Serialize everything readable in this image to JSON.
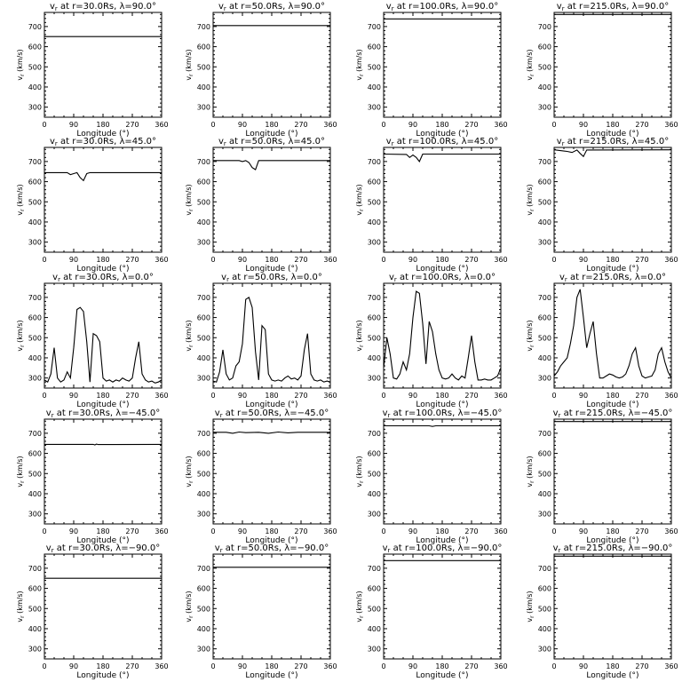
{
  "chart_data": {
    "type": "line",
    "layout": "5 rows x 4 columns",
    "common": {
      "xlabel": "Longitude (°)",
      "ylabel_prefix": "v",
      "ylabel_sub": "r",
      "ylabel_suffix": "(km/s)",
      "xlim": [
        0,
        360
      ],
      "xticks": [
        0,
        90,
        180,
        270,
        360
      ],
      "ylim": [
        250,
        770
      ],
      "yticks": [
        300,
        400,
        500,
        600,
        700
      ],
      "title_prefix": "v",
      "title_sub": "r"
    },
    "panels": [
      {
        "title": " at r=30.0Rs, λ=90.0°",
        "x": [
          0,
          360
        ],
        "y": [
          650,
          650
        ]
      },
      {
        "title": " at r=50.0Rs, λ=90.0°",
        "x": [
          0,
          360
        ],
        "y": [
          705,
          705
        ]
      },
      {
        "title": " at r=100.0Rs, λ=90.0°",
        "x": [
          0,
          360
        ],
        "y": [
          738,
          738
        ]
      },
      {
        "title": " at r=215.0Rs, λ=90.0°",
        "x": [
          0,
          360
        ],
        "y": [
          760,
          760
        ]
      },
      {
        "title": " at r=30.0Rs, λ=45.0°",
        "x": [
          0,
          70,
          80,
          90,
          100,
          110,
          120,
          130,
          140,
          360
        ],
        "y": [
          645,
          645,
          635,
          640,
          645,
          620,
          605,
          640,
          645,
          645
        ]
      },
      {
        "title": " at r=50.0Rs, λ=45.0°",
        "x": [
          0,
          80,
          90,
          100,
          110,
          120,
          130,
          140,
          360
        ],
        "y": [
          705,
          705,
          700,
          705,
          695,
          670,
          660,
          705,
          705
        ]
      },
      {
        "title": " at r=100.0Rs, λ=45.0°",
        "x": [
          0,
          70,
          80,
          90,
          100,
          110,
          120,
          360
        ],
        "y": [
          737,
          735,
          720,
          732,
          720,
          700,
          737,
          737
        ]
      },
      {
        "title": " at r=215.0Rs, λ=45.0°",
        "x": [
          0,
          40,
          55,
          70,
          80,
          90,
          100,
          360
        ],
        "y": [
          758,
          750,
          745,
          757,
          740,
          725,
          757,
          758
        ]
      },
      {
        "title": " at r=30.0Rs, λ=0.0°",
        "x": [
          0,
          10,
          20,
          30,
          40,
          50,
          60,
          70,
          80,
          90,
          100,
          110,
          120,
          130,
          140,
          150,
          160,
          170,
          180,
          190,
          200,
          210,
          220,
          230,
          240,
          250,
          260,
          270,
          280,
          290,
          300,
          310,
          320,
          330,
          340,
          350,
          360
        ],
        "y": [
          290,
          280,
          320,
          450,
          300,
          280,
          290,
          330,
          300,
          450,
          640,
          650,
          630,
          480,
          280,
          520,
          510,
          480,
          300,
          285,
          290,
          280,
          290,
          285,
          300,
          290,
          285,
          300,
          400,
          480,
          320,
          290,
          280,
          285,
          275,
          280,
          290
        ]
      },
      {
        "title": " at r=50.0Rs, λ=0.0°",
        "x": [
          0,
          10,
          20,
          30,
          40,
          50,
          60,
          70,
          80,
          90,
          100,
          110,
          120,
          130,
          140,
          150,
          160,
          170,
          180,
          190,
          200,
          210,
          220,
          230,
          240,
          250,
          260,
          270,
          280,
          290,
          300,
          310,
          320,
          330,
          340,
          350,
          360
        ],
        "y": [
          285,
          280,
          330,
          440,
          320,
          290,
          300,
          360,
          380,
          470,
          690,
          700,
          650,
          430,
          290,
          560,
          540,
          320,
          290,
          285,
          290,
          285,
          300,
          310,
          295,
          300,
          290,
          310,
          440,
          520,
          320,
          290,
          285,
          290,
          280,
          285,
          280
        ]
      },
      {
        "title": " at r=100.0Rs, λ=0.0°",
        "x": [
          0,
          10,
          20,
          30,
          40,
          50,
          60,
          70,
          80,
          90,
          100,
          110,
          120,
          130,
          140,
          150,
          160,
          170,
          180,
          190,
          200,
          210,
          220,
          230,
          240,
          250,
          260,
          270,
          280,
          290,
          300,
          310,
          320,
          330,
          340,
          350,
          360
        ],
        "y": [
          350,
          500,
          420,
          300,
          295,
          320,
          380,
          340,
          420,
          600,
          730,
          720,
          570,
          370,
          580,
          530,
          420,
          340,
          300,
          295,
          300,
          320,
          300,
          290,
          310,
          300,
          400,
          510,
          380,
          290,
          290,
          295,
          290,
          290,
          300,
          310,
          350
        ]
      },
      {
        "title": " at r=215.0Rs, λ=0.0°",
        "x": [
          0,
          10,
          20,
          30,
          40,
          50,
          60,
          70,
          80,
          90,
          100,
          110,
          120,
          130,
          140,
          150,
          160,
          170,
          180,
          190,
          200,
          210,
          220,
          230,
          240,
          250,
          260,
          270,
          280,
          290,
          300,
          310,
          320,
          330,
          340,
          350,
          360
        ],
        "y": [
          310,
          330,
          360,
          380,
          400,
          470,
          560,
          700,
          740,
          600,
          450,
          520,
          580,
          420,
          300,
          300,
          310,
          320,
          315,
          305,
          300,
          305,
          320,
          360,
          420,
          450,
          360,
          310,
          300,
          305,
          310,
          340,
          420,
          450,
          380,
          330,
          300
        ]
      },
      {
        "title": " at r=30.0Rs, λ=−45.0°",
        "x": [
          0,
          150,
          155,
          160,
          165,
          360
        ],
        "y": [
          645,
          645,
          642,
          646,
          644,
          645
        ]
      },
      {
        "title": " at r=50.0Rs, λ=−45.0°",
        "x": [
          0,
          40,
          60,
          80,
          100,
          140,
          170,
          200,
          230,
          260,
          360
        ],
        "y": [
          705,
          705,
          700,
          706,
          703,
          705,
          700,
          706,
          702,
          705,
          705
        ]
      },
      {
        "title": " at r=100.0Rs, λ=−45.0°",
        "x": [
          0,
          140,
          150,
          160,
          360
        ],
        "y": [
          737,
          737,
          734,
          737,
          737
        ]
      },
      {
        "title": " at r=215.0Rs, λ=−45.0°",
        "x": [
          0,
          360
        ],
        "y": [
          758,
          758
        ]
      },
      {
        "title": " at r=30.0Rs, λ=−90.0°",
        "x": [
          0,
          360
        ],
        "y": [
          650,
          650
        ]
      },
      {
        "title": " at r=50.0Rs, λ=−90.0°",
        "x": [
          0,
          360
        ],
        "y": [
          705,
          705
        ]
      },
      {
        "title": " at r=100.0Rs, λ=−90.0°",
        "x": [
          0,
          360
        ],
        "y": [
          738,
          738
        ]
      },
      {
        "title": " at r=215.0Rs, λ=−90.0°",
        "x": [
          0,
          360
        ],
        "y": [
          760,
          760
        ]
      }
    ]
  }
}
